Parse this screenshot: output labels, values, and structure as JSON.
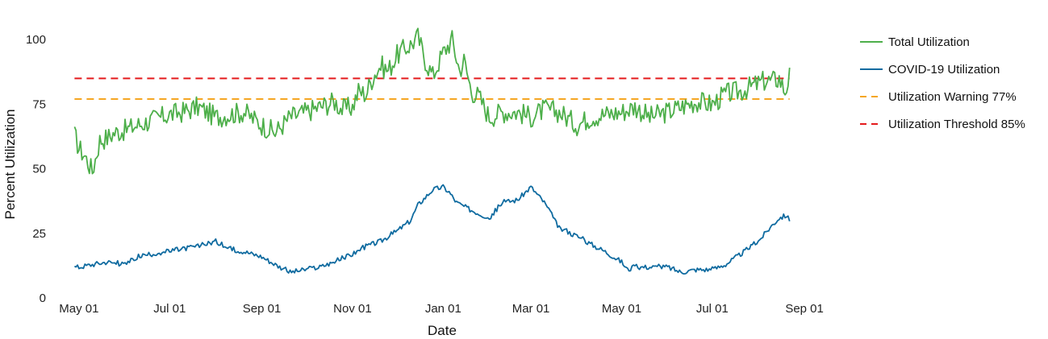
{
  "chart_data": {
    "type": "line",
    "title": "",
    "xlabel": "Date",
    "ylabel": "Percent Utilization",
    "x_range": [
      "2020-04-24",
      "2021-09-08"
    ],
    "ylim": [
      0,
      106
    ],
    "y_ticks": [
      0,
      25,
      50,
      75,
      100
    ],
    "x_ticks": [
      {
        "date": "2020-05-01",
        "label": "May 01"
      },
      {
        "date": "2020-07-01",
        "label": "Jul 01"
      },
      {
        "date": "2020-09-01",
        "label": "Sep 01"
      },
      {
        "date": "2020-11-01",
        "label": "Nov 01"
      },
      {
        "date": "2021-01-01",
        "label": "Jan 01"
      },
      {
        "date": "2021-03-01",
        "label": "Mar 01"
      },
      {
        "date": "2021-05-01",
        "label": "May 01"
      },
      {
        "date": "2021-07-01",
        "label": "Jul 01"
      },
      {
        "date": "2021-09-01",
        "label": "Sep 01"
      }
    ],
    "grid": false,
    "legend_position": "top-right",
    "series": [
      {
        "name": "Total Utilization",
        "color": "#4daf4a",
        "x": [
          "2020-04-28",
          "2020-05-01",
          "2020-05-05",
          "2020-05-10",
          "2020-05-15",
          "2020-05-20",
          "2020-05-25",
          "2020-06-01",
          "2020-06-10",
          "2020-06-20",
          "2020-07-01",
          "2020-07-10",
          "2020-07-20",
          "2020-08-01",
          "2020-08-10",
          "2020-08-20",
          "2020-09-01",
          "2020-09-10",
          "2020-09-20",
          "2020-10-01",
          "2020-10-10",
          "2020-10-20",
          "2020-10-25",
          "2020-11-01",
          "2020-11-05",
          "2020-11-10",
          "2020-11-15",
          "2020-11-20",
          "2020-11-25",
          "2020-12-01",
          "2020-12-05",
          "2020-12-10",
          "2020-12-15",
          "2020-12-20",
          "2020-12-25",
          "2021-01-01",
          "2021-01-07",
          "2021-01-12",
          "2021-01-15",
          "2021-01-20",
          "2021-01-25",
          "2021-02-01",
          "2021-02-10",
          "2021-02-20",
          "2021-03-01",
          "2021-03-10",
          "2021-03-20",
          "2021-04-01",
          "2021-04-10",
          "2021-04-20",
          "2021-05-01",
          "2021-05-10",
          "2021-05-20",
          "2021-06-01",
          "2021-06-10",
          "2021-06-20",
          "2021-07-01",
          "2021-07-10",
          "2021-07-20",
          "2021-08-01",
          "2021-08-05",
          "2021-08-10",
          "2021-08-15",
          "2021-08-19",
          "2021-08-22"
        ],
        "values": [
          63,
          58,
          55,
          49,
          61,
          62,
          64,
          65,
          67,
          69,
          71,
          72,
          74,
          70,
          71,
          72,
          67,
          64,
          70,
          72,
          74,
          76,
          73,
          74,
          80,
          79,
          86,
          90,
          88,
          94,
          96,
          98,
          101,
          92,
          86,
          95,
          100,
          88,
          92,
          80,
          78,
          70,
          72,
          72,
          70,
          73,
          72,
          67,
          70,
          71,
          72,
          74,
          70,
          72,
          74,
          76,
          75,
          79,
          80,
          83,
          84,
          84,
          85,
          80,
          86
        ]
      },
      {
        "name": "COVID-19 Utilization",
        "color": "#0f6ba0",
        "x": [
          "2020-04-28",
          "2020-05-01",
          "2020-05-10",
          "2020-05-20",
          "2020-06-01",
          "2020-06-10",
          "2020-06-20",
          "2020-07-01",
          "2020-07-10",
          "2020-07-20",
          "2020-08-01",
          "2020-08-10",
          "2020-08-20",
          "2020-09-01",
          "2020-09-10",
          "2020-09-20",
          "2020-10-01",
          "2020-10-10",
          "2020-10-20",
          "2020-11-01",
          "2020-11-10",
          "2020-11-20",
          "2020-12-01",
          "2020-12-10",
          "2020-12-15",
          "2020-12-20",
          "2020-12-25",
          "2021-01-01",
          "2021-01-05",
          "2021-01-10",
          "2021-01-20",
          "2021-02-01",
          "2021-02-10",
          "2021-02-20",
          "2021-03-01",
          "2021-03-10",
          "2021-03-20",
          "2021-04-01",
          "2021-04-10",
          "2021-04-20",
          "2021-05-01",
          "2021-05-05",
          "2021-05-10",
          "2021-05-20",
          "2021-06-01",
          "2021-06-10",
          "2021-06-20",
          "2021-07-01",
          "2021-07-10",
          "2021-07-20",
          "2021-08-01",
          "2021-08-10",
          "2021-08-15",
          "2021-08-20",
          "2021-08-22"
        ],
        "values": [
          12,
          12,
          13,
          14,
          13,
          16,
          17,
          18,
          19,
          20,
          22,
          19,
          18,
          16,
          13,
          10,
          11,
          12,
          14,
          17,
          20,
          22,
          26,
          30,
          36,
          39,
          42,
          43,
          41,
          37,
          34,
          31,
          37,
          38,
          43,
          37,
          27,
          24,
          21,
          18,
          14,
          11,
          12,
          12,
          12,
          10,
          11,
          11,
          13,
          17,
          22,
          28,
          31,
          32,
          30
        ]
      },
      {
        "name": "Utilization Warning 77%",
        "color": "#f5a623",
        "x": [
          "2020-04-28",
          "2021-08-22"
        ],
        "values": [
          77,
          77
        ]
      },
      {
        "name": "Utilization Threshold 85%",
        "color": "#e41a1c",
        "x": [
          "2020-04-28",
          "2021-08-22"
        ],
        "values": [
          85,
          85
        ]
      }
    ]
  }
}
